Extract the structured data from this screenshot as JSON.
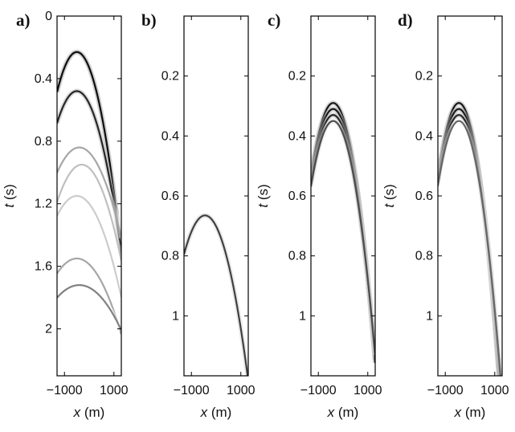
{
  "chart_data": [
    {
      "type": "heatmap",
      "panel_label": "a)",
      "xlabel_var": "x",
      "xlabel_unit": " (m)",
      "ylabel_var": "t",
      "ylabel_unit": " (s)",
      "xlim": [
        -1300,
        1300
      ],
      "xticks": [
        -1000,
        1000
      ],
      "xtick_labels": [
        "−1000",
        "1000"
      ],
      "ylim": [
        0,
        2.3
      ],
      "y_reversed": true,
      "yticks": [
        0,
        0.4,
        0.8,
        1.2,
        1.6,
        2
      ],
      "ytick_labels": [
        "0",
        "0.4",
        "0.8",
        "1.2",
        "1.6",
        "2"
      ],
      "events": [
        {
          "apex_x": -500,
          "apex_t": 0.23,
          "curvature": 4e-07,
          "strength": 0.95
        },
        {
          "apex_x": -500,
          "apex_t": 0.48,
          "curvature": 3.2e-07,
          "strength": 0.85
        },
        {
          "apex_x": -400,
          "apex_t": 0.84,
          "curvature": 2e-07,
          "strength": 0.35
        },
        {
          "apex_x": -300,
          "apex_t": 0.95,
          "curvature": 2.4e-07,
          "strength": 0.25
        },
        {
          "apex_x": -500,
          "apex_t": 1.15,
          "curvature": 2e-07,
          "strength": 0.2
        },
        {
          "apex_x": -500,
          "apex_t": 1.55,
          "curvature": 1.5e-07,
          "strength": 0.35
        },
        {
          "apex_x": -400,
          "apex_t": 1.72,
          "curvature": 1e-07,
          "strength": 0.5
        }
      ]
    },
    {
      "type": "heatmap",
      "panel_label": "b)",
      "xlabel_var": "x",
      "xlabel_unit": " (m)",
      "ylabel_var": "",
      "ylabel_unit": "",
      "xlim": [
        -1300,
        1300
      ],
      "xticks": [
        -1000,
        1000
      ],
      "xtick_labels": [
        "−1000",
        "1000"
      ],
      "ylim": [
        0,
        1.2
      ],
      "y_reversed": true,
      "yticks": [
        0.2,
        0.4,
        0.6,
        0.8,
        1
      ],
      "ytick_labels": [
        "0.2",
        "0.4",
        "0.6",
        "0.8",
        "1"
      ],
      "events": [
        {
          "apex_x": -450,
          "apex_t": 0.665,
          "curvature": 1.8e-07,
          "strength": 0.75
        }
      ]
    },
    {
      "type": "heatmap",
      "panel_label": "c)",
      "xlabel_var": "x",
      "xlabel_unit": " (m)",
      "ylabel_var": "t",
      "ylabel_unit": " (s)",
      "xlim": [
        -1300,
        1300
      ],
      "xticks": [
        -1000,
        1000
      ],
      "xtick_labels": [
        "−1000",
        "1000"
      ],
      "ylim": [
        0,
        1.2
      ],
      "y_reversed": true,
      "yticks": [
        0.2,
        0.4,
        0.6,
        0.8,
        1
      ],
      "ytick_labels": [
        "0.2",
        "0.4",
        "0.6",
        "0.8",
        "1"
      ],
      "events": [
        {
          "apex_x": -400,
          "apex_t": 0.29,
          "curvature": 3e-07,
          "strength": 0.9
        },
        {
          "apex_x": -400,
          "apex_t": 0.31,
          "curvature": 2.9e-07,
          "strength": 0.9
        },
        {
          "apex_x": -400,
          "apex_t": 0.33,
          "curvature": 2.8e-07,
          "strength": 0.85
        },
        {
          "apex_x": -400,
          "apex_t": 0.35,
          "curvature": 2.7e-07,
          "strength": 0.7
        }
      ]
    },
    {
      "type": "heatmap",
      "panel_label": "d)",
      "xlabel_var": "x",
      "xlabel_unit": " (m)",
      "ylabel_var": "t",
      "ylabel_unit": " (s)",
      "xlim": [
        -1300,
        1300
      ],
      "xticks": [
        -1000,
        1000
      ],
      "xtick_labels": [
        "−1000",
        "1000"
      ],
      "ylim": [
        0,
        1.2
      ],
      "y_reversed": true,
      "yticks": [
        0.2,
        0.4,
        0.6,
        0.8,
        1
      ],
      "ytick_labels": [
        "0.2",
        "0.4",
        "0.6",
        "0.8",
        "1"
      ],
      "events": [
        {
          "apex_x": -450,
          "apex_t": 0.29,
          "curvature": 3.5e-07,
          "strength": 0.9
        },
        {
          "apex_x": -450,
          "apex_t": 0.31,
          "curvature": 3.3e-07,
          "strength": 0.9
        },
        {
          "apex_x": -450,
          "apex_t": 0.33,
          "curvature": 3.1e-07,
          "strength": 0.85
        },
        {
          "apex_x": -450,
          "apex_t": 0.35,
          "curvature": 3e-07,
          "strength": 0.6
        }
      ]
    }
  ]
}
